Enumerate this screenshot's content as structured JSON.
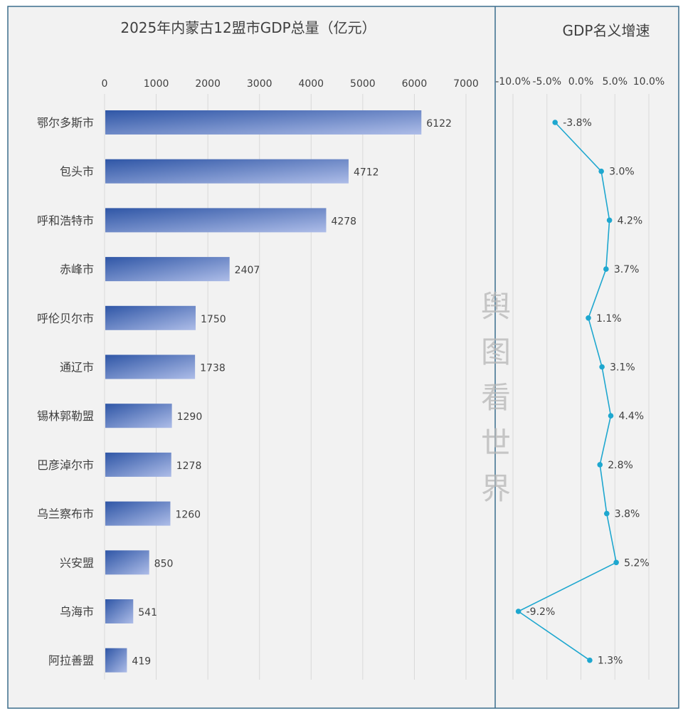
{
  "watermark": "舆图看世界",
  "colors": {
    "background": "#f2f2f2",
    "frame": "#3b6d8c",
    "bar_dark": "#2f56a6",
    "bar_light": "#aebde8",
    "line": "#1ea7cf",
    "text": "#404040",
    "grid": "#d9d9d9",
    "watermark": "#b5b5b5"
  },
  "chart_data": [
    {
      "type": "bar",
      "orientation": "horizontal",
      "title": "2025年内蒙古12盟市GDP总量（亿元）",
      "categories": [
        "鄂尔多斯市",
        "包头市",
        "呼和浩特市",
        "赤峰市",
        "呼伦贝尔市",
        "通辽市",
        "锡林郭勒盟",
        "巴彦淖尔市",
        "乌兰察布市",
        "兴安盟",
        "乌海市",
        "阿拉善盟"
      ],
      "values": [
        6122,
        4712,
        4278,
        2407,
        1750,
        1738,
        1290,
        1278,
        1260,
        850,
        541,
        419
      ],
      "xlim": [
        0,
        7000
      ],
      "ticks": [
        "0",
        "1000",
        "2000",
        "3000",
        "4000",
        "5000",
        "6000",
        "7000"
      ],
      "grid": true
    },
    {
      "type": "line",
      "title": "GDP名义增速",
      "categories": [
        "鄂尔多斯市",
        "包头市",
        "呼和浩特市",
        "赤峰市",
        "呼伦贝尔市",
        "通辽市",
        "锡林郭勒盟",
        "巴彦淖尔市",
        "乌兰察布市",
        "兴安盟",
        "乌海市",
        "阿拉善盟"
      ],
      "values": [
        -3.8,
        3.0,
        4.2,
        3.7,
        1.1,
        3.1,
        4.4,
        2.8,
        3.8,
        5.2,
        -9.2,
        1.3
      ],
      "labels": [
        "-3.8%",
        "3.0%",
        "4.2%",
        "3.7%",
        "1.1%",
        "3.1%",
        "4.4%",
        "2.8%",
        "3.8%",
        "5.2%",
        "-9.2%",
        "1.3%"
      ],
      "xlim": [
        -10,
        10
      ],
      "ticks": [
        "-10.0%",
        "-5.0%",
        "0.0%",
        "5.0%",
        "10.0%"
      ],
      "grid": true
    }
  ]
}
